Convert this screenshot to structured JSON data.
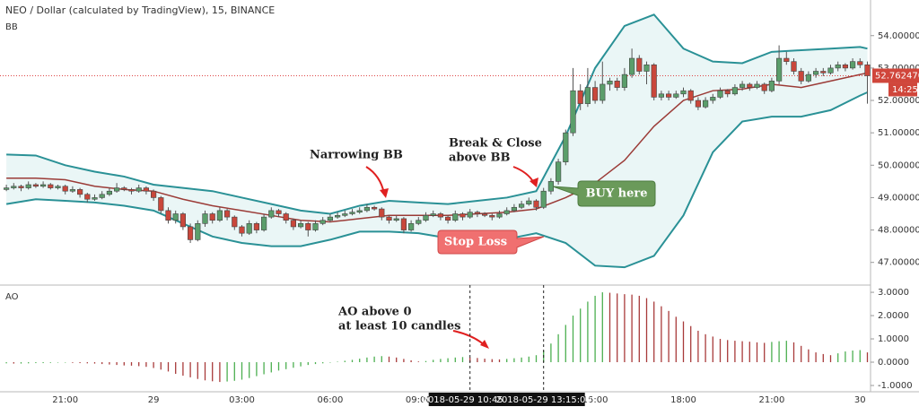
{
  "chart_data": {
    "type": "candlestick",
    "title": "NEO / Dollar (calculated by TradingView), 15, BINANCE",
    "indicator_label": "BB",
    "ylim": [
      46.3,
      55.1
    ],
    "yticks": [
      {
        "value": 47,
        "label": "47.000000"
      },
      {
        "value": 48,
        "label": "48.000000"
      },
      {
        "value": 49,
        "label": "49.000000"
      },
      {
        "value": 50,
        "label": "50.000000"
      },
      {
        "value": 51,
        "label": "51.000000"
      },
      {
        "value": 52,
        "label": "52.000000"
      },
      {
        "value": 53,
        "label": "53.000000"
      },
      {
        "value": 54,
        "label": "54.000000"
      }
    ],
    "up_color": "#5b9e6b",
    "down_color": "#c9473b",
    "ohlc": [
      [
        49.25,
        49.4,
        49.2,
        49.3
      ],
      [
        49.3,
        49.45,
        49.25,
        49.35
      ],
      [
        49.35,
        49.4,
        49.2,
        49.3
      ],
      [
        49.3,
        49.5,
        49.25,
        49.4
      ],
      [
        49.4,
        49.45,
        49.3,
        49.35
      ],
      [
        49.35,
        49.5,
        49.3,
        49.4
      ],
      [
        49.4,
        49.45,
        49.25,
        49.3
      ],
      [
        49.3,
        49.4,
        49.25,
        49.35
      ],
      [
        49.35,
        49.4,
        49.1,
        49.2
      ],
      [
        49.2,
        49.35,
        49.15,
        49.25
      ],
      [
        49.25,
        49.3,
        49.0,
        49.1
      ],
      [
        49.1,
        49.15,
        48.85,
        48.95
      ],
      [
        48.95,
        49.1,
        48.9,
        49.0
      ],
      [
        49.0,
        49.2,
        48.95,
        49.1
      ],
      [
        49.1,
        49.3,
        49.05,
        49.2
      ],
      [
        49.2,
        49.45,
        49.15,
        49.3
      ],
      [
        49.3,
        49.35,
        49.2,
        49.25
      ],
      [
        49.25,
        49.3,
        49.1,
        49.2
      ],
      [
        49.2,
        49.4,
        49.15,
        49.3
      ],
      [
        49.3,
        49.35,
        49.1,
        49.2
      ],
      [
        49.2,
        49.25,
        48.9,
        49.0
      ],
      [
        49.0,
        49.05,
        48.5,
        48.6
      ],
      [
        48.6,
        48.7,
        48.2,
        48.3
      ],
      [
        48.3,
        48.6,
        48.2,
        48.5
      ],
      [
        48.5,
        48.55,
        48.0,
        48.1
      ],
      [
        48.1,
        48.2,
        47.6,
        47.7
      ],
      [
        47.7,
        48.3,
        47.65,
        48.2
      ],
      [
        48.2,
        48.6,
        48.1,
        48.5
      ],
      [
        48.5,
        48.55,
        48.2,
        48.3
      ],
      [
        48.3,
        48.7,
        48.25,
        48.6
      ],
      [
        48.6,
        48.65,
        48.3,
        48.4
      ],
      [
        48.4,
        48.45,
        48.0,
        48.1
      ],
      [
        48.1,
        48.15,
        47.8,
        47.9
      ],
      [
        47.9,
        48.3,
        47.85,
        48.2
      ],
      [
        48.2,
        48.25,
        47.9,
        48.0
      ],
      [
        48.0,
        48.5,
        47.95,
        48.4
      ],
      [
        48.4,
        48.7,
        48.35,
        48.6
      ],
      [
        48.6,
        48.65,
        48.4,
        48.5
      ],
      [
        48.5,
        48.55,
        48.2,
        48.3
      ],
      [
        48.3,
        48.35,
        48.0,
        48.1
      ],
      [
        48.1,
        48.3,
        48.05,
        48.2
      ],
      [
        48.2,
        48.25,
        47.8,
        48.0
      ],
      [
        48.0,
        48.3,
        47.95,
        48.2
      ],
      [
        48.2,
        48.4,
        48.15,
        48.3
      ],
      [
        48.3,
        48.5,
        48.25,
        48.4
      ],
      [
        48.4,
        48.55,
        48.35,
        48.45
      ],
      [
        48.45,
        48.6,
        48.4,
        48.5
      ],
      [
        48.5,
        48.65,
        48.45,
        48.55
      ],
      [
        48.55,
        48.7,
        48.5,
        48.6
      ],
      [
        48.6,
        48.8,
        48.55,
        48.7
      ],
      [
        48.7,
        48.75,
        48.6,
        48.65
      ],
      [
        48.65,
        48.7,
        48.3,
        48.4
      ],
      [
        48.4,
        48.45,
        48.2,
        48.3
      ],
      [
        48.3,
        48.45,
        48.25,
        48.35
      ],
      [
        48.35,
        48.4,
        47.9,
        48.0
      ],
      [
        48.0,
        48.3,
        47.95,
        48.2
      ],
      [
        48.2,
        48.4,
        48.15,
        48.3
      ],
      [
        48.3,
        48.55,
        48.25,
        48.45
      ],
      [
        48.45,
        48.6,
        48.4,
        48.5
      ],
      [
        48.5,
        48.55,
        48.3,
        48.4
      ],
      [
        48.4,
        48.45,
        48.2,
        48.3
      ],
      [
        48.3,
        48.6,
        48.25,
        48.5
      ],
      [
        48.5,
        48.55,
        48.3,
        48.4
      ],
      [
        48.4,
        48.65,
        48.35,
        48.55
      ],
      [
        48.55,
        48.6,
        48.4,
        48.5
      ],
      [
        48.5,
        48.55,
        48.4,
        48.45
      ],
      [
        48.45,
        48.5,
        48.3,
        48.4
      ],
      [
        48.4,
        48.6,
        48.35,
        48.5
      ],
      [
        48.5,
        48.7,
        48.45,
        48.6
      ],
      [
        48.6,
        48.8,
        48.55,
        48.7
      ],
      [
        48.7,
        48.9,
        48.65,
        48.8
      ],
      [
        48.8,
        49.0,
        48.75,
        48.9
      ],
      [
        48.9,
        48.95,
        48.6,
        48.7
      ],
      [
        48.7,
        49.3,
        48.65,
        49.2
      ],
      [
        49.2,
        49.6,
        49.1,
        49.5
      ],
      [
        49.5,
        50.2,
        49.4,
        50.1
      ],
      [
        50.1,
        51.1,
        50.0,
        51.0
      ],
      [
        51.0,
        53.0,
        50.9,
        52.3
      ],
      [
        52.3,
        52.5,
        51.7,
        51.9
      ],
      [
        51.9,
        53.0,
        51.8,
        52.4
      ],
      [
        52.4,
        52.6,
        51.9,
        52.0
      ],
      [
        52.0,
        53.2,
        51.9,
        52.5
      ],
      [
        52.5,
        52.7,
        52.3,
        52.6
      ],
      [
        52.6,
        52.7,
        52.3,
        52.4
      ],
      [
        52.4,
        53.0,
        52.3,
        52.8
      ],
      [
        52.8,
        53.6,
        52.7,
        53.3
      ],
      [
        53.3,
        53.4,
        52.8,
        52.9
      ],
      [
        52.9,
        53.2,
        52.5,
        53.1
      ],
      [
        53.1,
        53.15,
        52.0,
        52.1
      ],
      [
        52.1,
        52.3,
        52.0,
        52.2
      ],
      [
        52.2,
        52.3,
        52.0,
        52.1
      ],
      [
        52.1,
        52.3,
        52.05,
        52.2
      ],
      [
        52.2,
        52.4,
        52.1,
        52.3
      ],
      [
        52.3,
        52.35,
        51.9,
        52.0
      ],
      [
        52.0,
        52.1,
        51.7,
        51.8
      ],
      [
        51.8,
        52.1,
        51.75,
        52.0
      ],
      [
        52.0,
        52.2,
        51.9,
        52.1
      ],
      [
        52.1,
        52.4,
        52.05,
        52.3
      ],
      [
        52.3,
        52.35,
        52.1,
        52.2
      ],
      [
        52.2,
        52.5,
        52.15,
        52.4
      ],
      [
        52.4,
        52.6,
        52.3,
        52.5
      ],
      [
        52.5,
        52.55,
        52.3,
        52.4
      ],
      [
        52.4,
        52.6,
        52.35,
        52.5
      ],
      [
        52.5,
        52.55,
        52.2,
        52.3
      ],
      [
        52.3,
        52.7,
        52.25,
        52.6
      ],
      [
        52.6,
        53.7,
        52.5,
        53.3
      ],
      [
        53.3,
        53.5,
        53.1,
        53.2
      ],
      [
        53.2,
        53.3,
        52.8,
        52.9
      ],
      [
        52.9,
        53.0,
        52.5,
        52.6
      ],
      [
        52.6,
        52.9,
        52.55,
        52.8
      ],
      [
        52.8,
        53.0,
        52.7,
        52.9
      ],
      [
        52.9,
        53.0,
        52.75,
        52.85
      ],
      [
        52.85,
        53.1,
        52.8,
        53.0
      ],
      [
        53.0,
        53.2,
        52.9,
        53.1
      ],
      [
        53.1,
        53.15,
        52.9,
        53.0
      ],
      [
        53.0,
        53.3,
        52.95,
        53.2
      ],
      [
        53.2,
        53.3,
        53.0,
        53.1
      ],
      [
        53.1,
        53.2,
        51.9,
        52.76
      ]
    ],
    "bands": {
      "x": [
        0,
        4,
        8,
        12,
        16,
        20,
        24,
        28,
        32,
        36,
        40,
        44,
        48,
        52,
        56,
        60,
        64,
        68,
        72,
        76,
        80,
        84,
        88,
        92,
        96,
        100,
        104,
        108,
        112,
        116,
        117
      ],
      "upper": [
        50.33,
        50.3,
        50.0,
        49.8,
        49.65,
        49.4,
        49.3,
        49.2,
        49.0,
        48.8,
        48.6,
        48.5,
        48.75,
        48.9,
        48.85,
        48.8,
        48.9,
        49.0,
        49.2,
        50.9,
        53.0,
        54.3,
        54.65,
        53.6,
        53.2,
        53.15,
        53.5,
        53.55,
        53.6,
        53.65,
        53.6
      ],
      "middle": [
        49.6,
        49.6,
        49.55,
        49.35,
        49.25,
        49.2,
        48.95,
        48.75,
        48.6,
        48.45,
        48.3,
        48.25,
        48.35,
        48.45,
        48.45,
        48.45,
        48.5,
        48.55,
        48.65,
        49.0,
        49.45,
        50.15,
        51.2,
        52.0,
        52.3,
        52.35,
        52.5,
        52.4,
        52.6,
        52.8,
        52.85
      ],
      "lower": [
        48.8,
        48.95,
        48.9,
        48.85,
        48.75,
        48.6,
        48.2,
        47.8,
        47.6,
        47.5,
        47.5,
        47.7,
        47.95,
        47.95,
        47.9,
        47.75,
        47.67,
        47.72,
        47.9,
        47.6,
        46.9,
        46.85,
        47.2,
        48.45,
        50.4,
        51.35,
        51.5,
        51.5,
        51.7,
        52.15,
        52.25
      ],
      "band_color": "#2a9196",
      "middle_color": "#9b3b37",
      "fill_color": "#eaf6f6"
    },
    "last_price": {
      "value": 52.76247,
      "label": "52.762470"
    },
    "countdown": "14:25",
    "ao": {
      "label": "AO",
      "ylim": [
        -1.27,
        3.31
      ],
      "yticks": [
        {
          "value": -1,
          "label": "-1.0000"
        },
        {
          "value": 0,
          "label": "0.0000"
        },
        {
          "value": 1,
          "label": "1.0000"
        },
        {
          "value": 2,
          "label": "2.0000"
        },
        {
          "value": 3,
          "label": "3.0000"
        }
      ],
      "up_color": "#4caf50",
      "down_color": "#a83a3a",
      "values": [
        -0.05,
        -0.06,
        -0.06,
        -0.05,
        -0.04,
        -0.04,
        -0.03,
        -0.02,
        -0.02,
        -0.03,
        -0.04,
        -0.05,
        -0.06,
        -0.08,
        -0.1,
        -0.12,
        -0.14,
        -0.15,
        -0.17,
        -0.2,
        -0.25,
        -0.32,
        -0.4,
        -0.5,
        -0.58,
        -0.65,
        -0.72,
        -0.78,
        -0.82,
        -0.85,
        -0.83,
        -0.8,
        -0.75,
        -0.68,
        -0.6,
        -0.52,
        -0.44,
        -0.36,
        -0.3,
        -0.24,
        -0.18,
        -0.12,
        -0.08,
        -0.05,
        -0.02,
        0.02,
        0.06,
        0.1,
        0.15,
        0.2,
        0.24,
        0.26,
        0.24,
        0.2,
        0.14,
        0.08,
        0.03,
        0.05,
        0.1,
        0.14,
        0.17,
        0.2,
        0.22,
        0.2,
        0.18,
        0.15,
        0.13,
        0.12,
        0.14,
        0.17,
        0.2,
        0.24,
        0.3,
        0.5,
        0.8,
        1.2,
        1.6,
        2.0,
        2.3,
        2.6,
        2.85,
        3.0,
        2.98,
        2.95,
        2.92,
        2.9,
        2.85,
        2.75,
        2.6,
        2.4,
        2.2,
        1.95,
        1.75,
        1.55,
        1.35,
        1.2,
        1.1,
        1.0,
        0.95,
        0.92,
        0.9,
        0.88,
        0.85,
        0.83,
        0.87,
        0.9,
        0.92,
        0.85,
        0.7,
        0.55,
        0.42,
        0.35,
        0.3,
        0.38,
        0.46,
        0.5,
        0.52,
        0.42
      ]
    },
    "xticks": [
      {
        "value": 8,
        "label": "21:00"
      },
      {
        "value": 20,
        "label": "29"
      },
      {
        "value": 32,
        "label": "03:00"
      },
      {
        "value": 44,
        "label": "06:00"
      },
      {
        "value": 56,
        "label": "09:00"
      },
      {
        "value": 80,
        "label": "15:00"
      },
      {
        "value": 92,
        "label": "18:00"
      },
      {
        "value": 104,
        "label": "21:00"
      },
      {
        "value": 116,
        "label": "30"
      }
    ],
    "crosshairs": [
      {
        "value": 63,
        "label": "2018-05-29 10:45:00"
      },
      {
        "value": 73,
        "label": "2018-05-29 13:15:00"
      }
    ],
    "annotations": {
      "narrowing": "Narrowing BB",
      "break": [
        "Break & Close",
        "above BB"
      ],
      "buy": "BUY here",
      "stop": "Stop Loss",
      "ao_note": [
        "AO above 0",
        "at least 10 candles"
      ]
    }
  }
}
